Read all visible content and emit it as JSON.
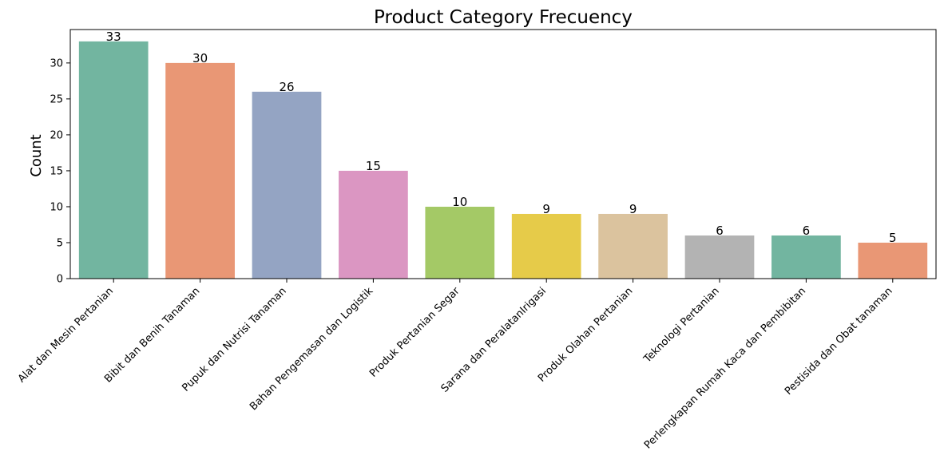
{
  "chart_data": {
    "type": "bar",
    "title": "Product Category Frecuency",
    "xlabel": "",
    "ylabel": "Count",
    "ylim": [
      0,
      34.65
    ],
    "yticks": [
      0,
      5,
      10,
      15,
      20,
      25,
      30
    ],
    "grid": false,
    "categories": [
      "Alat dan Mesin Pertanian",
      "Bibit dan Benih Tanaman",
      "Pupuk dan Nutrisi Tanaman",
      "Bahan Pengemasan dan Logistik",
      "Produk Pertanian Segar",
      "Sarana dan PeralatanIrigasi",
      "Produk Olahan Pertanian",
      "Teknologi Pertanian",
      "Perlengkapan Rumah Kaca dan Pembibitan",
      "Pestisida dan Obat tanaman"
    ],
    "values": [
      33,
      30,
      26,
      15,
      10,
      9,
      9,
      6,
      6,
      5
    ],
    "colors": [
      "#72b5a0",
      "#e99775",
      "#94a4c3",
      "#db96c2",
      "#a4c966",
      "#e6cb49",
      "#dbc39e",
      "#b3b3b3",
      "#72b5a0",
      "#e99775"
    ]
  }
}
